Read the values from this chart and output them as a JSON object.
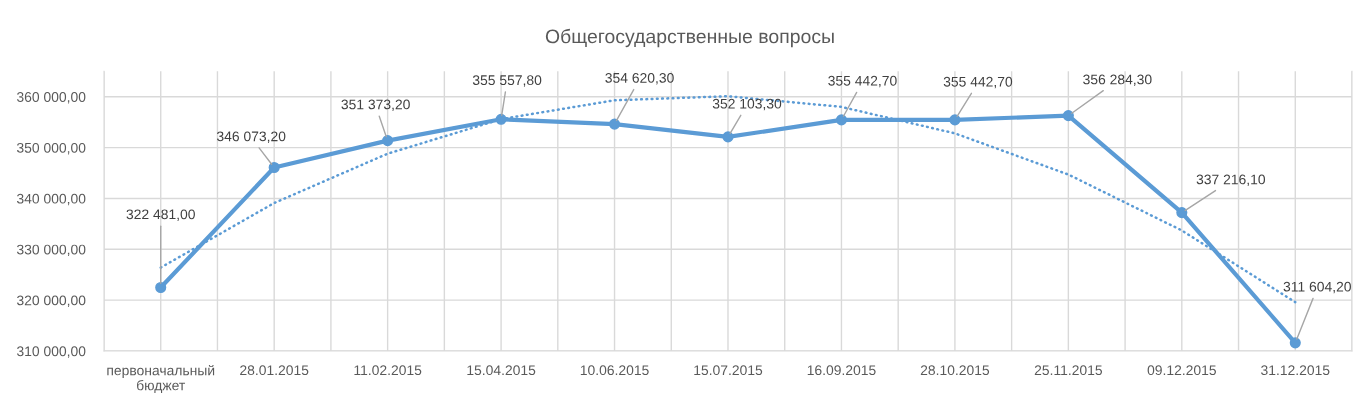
{
  "chart_data": {
    "type": "line",
    "title": "Общегосударственные вопросы",
    "categories": [
      "первоначальный\nбюджет",
      "28.01.2015",
      "11.02.2015",
      "15.04.2015",
      "10.06.2015",
      "15.07.2015",
      "16.09.2015",
      "28.10.2015",
      "25.11.2015",
      "09.12.2015",
      "31.12.2015"
    ],
    "series": [
      {
        "color": "#5b9bd5",
        "marker": "circle",
        "line_style": "solid",
        "values": [
          322481.0,
          346073.2,
          351373.2,
          355557.8,
          354620.3,
          352103.3,
          355442.7,
          355442.7,
          356284.3,
          337216.1,
          311604.2
        ],
        "value_labels": [
          "322 481,00",
          "346 073,20",
          "351 373,20",
          "355 557,80",
          "354 620,30",
          "352 103,30",
          "355 442,70",
          "355 442,70",
          "356 284,30",
          "337 216,10",
          "311 604,20"
        ]
      },
      {
        "color": "#5b9bd5",
        "marker": "none",
        "line_style": "dotted",
        "values": [
          326400,
          339100,
          348800,
          355600,
          359300,
          360100,
          358000,
          352800,
          344700,
          333700,
          319600
        ]
      }
    ],
    "ylim": [
      310000,
      365000
    ],
    "yticks": [
      {
        "value": 310000,
        "label": "310 000,00"
      },
      {
        "value": 320000,
        "label": "320 000,00"
      },
      {
        "value": 330000,
        "label": "330 000,00"
      },
      {
        "value": 340000,
        "label": "340 000,00"
      },
      {
        "value": 350000,
        "label": "350 000,00"
      },
      {
        "value": 360000,
        "label": "360 000,00"
      }
    ],
    "grid": true
  }
}
